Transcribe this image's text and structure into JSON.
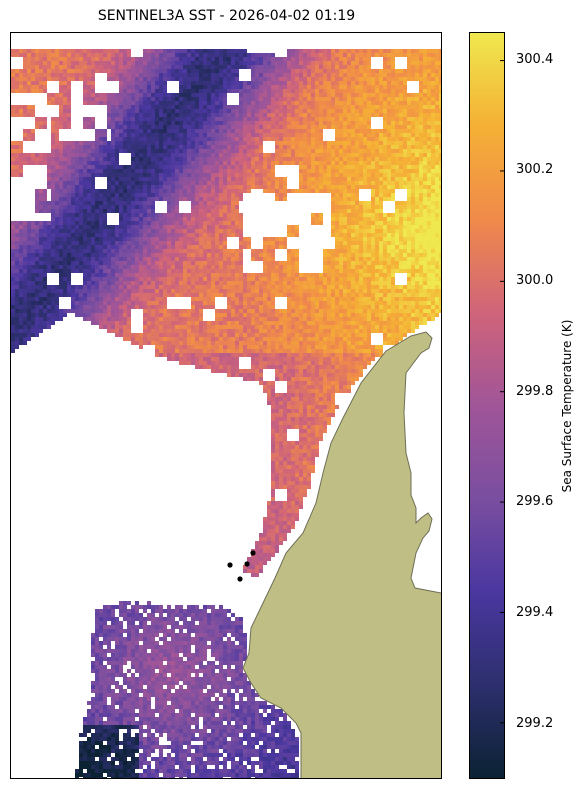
{
  "title": "SENTINEL3A SST - 2026-04-02 01:19",
  "colorbar": {
    "label": "Sea Surface Temperature (K)",
    "min": 299.1,
    "max": 300.45,
    "ticks": [
      "300.4",
      "300.2",
      "300.0",
      "299.8",
      "299.6",
      "299.4",
      "299.2"
    ],
    "tick_values": [
      300.4,
      300.2,
      300.0,
      299.8,
      299.6,
      299.4,
      299.2
    ],
    "colormap": "thermal",
    "stops": [
      "#0b2233",
      "#2d2f6e",
      "#4a37a0",
      "#7a4ea0",
      "#a05598",
      "#d0647a",
      "#f08a4a",
      "#f5b035",
      "#efe84e"
    ]
  },
  "colors": {
    "land": "#bfbf85",
    "land_edge": "#6e6e56",
    "no_data": "#ffffff"
  },
  "chart_data": {
    "type": "heatmap",
    "title": "SENTINEL3A SST - 2026-04-02 01:19",
    "zlabel": "Sea Surface Temperature (K)",
    "zlim": [
      299.1,
      300.45
    ],
    "description_values": {
      "cold_band_core": 299.3,
      "warm_northeast": 300.4,
      "southern_patch": 299.6
    },
    "markers": "black dots near coast"
  }
}
